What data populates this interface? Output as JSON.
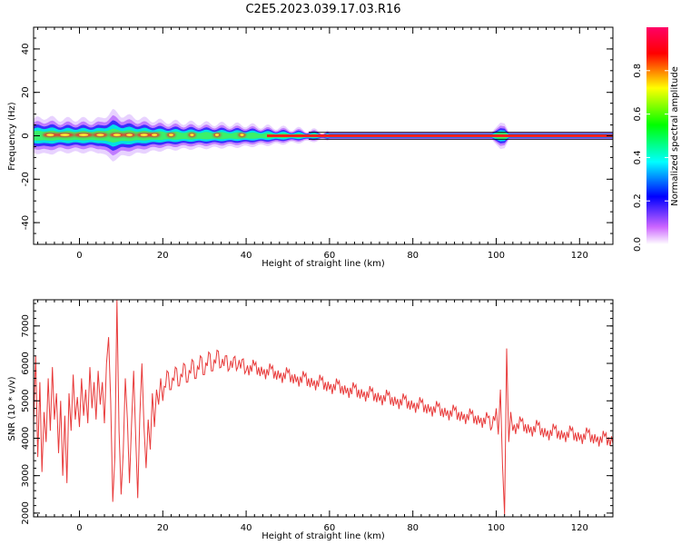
{
  "title": "C2E5.2023.039.17.03.R16",
  "chart_data": [
    {
      "type": "heatmap",
      "xlabel": "Height of straight line (km)",
      "ylabel": "Frequency (Hz)",
      "xlim": [
        -11,
        128
      ],
      "ylim": [
        -50,
        50
      ],
      "xticks": [
        0,
        20,
        40,
        60,
        80,
        100,
        120
      ],
      "yticks": [
        -40,
        -20,
        0,
        20,
        40
      ],
      "colorbar": {
        "label": "Normalized spectral amplitude",
        "range": [
          0,
          1
        ],
        "ticks": [
          "0.0",
          "0.2",
          "0.4",
          "0.6",
          "0.8"
        ],
        "colors": [
          "#ffffff",
          "#cc66ff",
          "#0000ff",
          "#00ffff",
          "#00ff00",
          "#ffff00",
          "#ff0000",
          "#ff0066"
        ]
      },
      "ridge": {
        "center_hz": 0,
        "halfwidth_hz": 1,
        "spread": [
          [
            -11,
            4
          ],
          [
            -8,
            4.5
          ],
          [
            -5,
            4
          ],
          [
            0,
            4
          ],
          [
            5,
            4
          ],
          [
            8,
            6
          ],
          [
            10,
            5
          ],
          [
            13,
            4.5
          ],
          [
            16,
            4
          ],
          [
            20,
            3.5
          ],
          [
            25,
            3.2
          ],
          [
            30,
            3
          ],
          [
            35,
            2.8
          ],
          [
            40,
            2.6
          ],
          [
            45,
            2.2
          ],
          [
            50,
            1.8
          ],
          [
            55,
            1.4
          ],
          [
            58,
            1.1
          ],
          [
            60,
            1.0
          ],
          [
            99,
            1.0
          ],
          [
            101,
            3.2
          ],
          [
            102,
            3.0
          ],
          [
            103,
            1.0
          ],
          [
            128,
            1.0
          ]
        ]
      }
    },
    {
      "type": "line",
      "xlabel": "Height of straight line (km)",
      "ylabel": "SNR (10 * v/v)",
      "xlim": [
        -11,
        128
      ],
      "ylim": [
        1900,
        7700
      ],
      "xticks": [
        0,
        20,
        40,
        60,
        80,
        100,
        120
      ],
      "yticks": [
        2000,
        3000,
        4000,
        5000,
        6000,
        7000
      ],
      "series": [
        {
          "color": "#e83a3a",
          "points": [
            [
              -11,
              4400
            ],
            [
              -10.5,
              6200
            ],
            [
              -10,
              3500
            ],
            [
              -9.5,
              5500
            ],
            [
              -9,
              3100
            ],
            [
              -8.5,
              4700
            ],
            [
              -8,
              3900
            ],
            [
              -7.5,
              5600
            ],
            [
              -7,
              4200
            ],
            [
              -6.5,
              5900
            ],
            [
              -6,
              4500
            ],
            [
              -5.5,
              5200
            ],
            [
              -5,
              3600
            ],
            [
              -4.5,
              5000
            ],
            [
              -4,
              3000
            ],
            [
              -3.5,
              4600
            ],
            [
              -3,
              2800
            ],
            [
              -2.5,
              5200
            ],
            [
              -2,
              4200
            ],
            [
              -1.5,
              5700
            ],
            [
              -1,
              4500
            ],
            [
              -0.5,
              5100
            ],
            [
              0,
              4300
            ],
            [
              0.5,
              5600
            ],
            [
              1,
              4600
            ],
            [
              1.5,
              5300
            ],
            [
              2,
              4400
            ],
            [
              2.5,
              5900
            ],
            [
              3,
              4800
            ],
            [
              3.5,
              5500
            ],
            [
              4,
              4500
            ],
            [
              4.5,
              5800
            ],
            [
              5,
              4900
            ],
            [
              5.5,
              5500
            ],
            [
              6,
              4400
            ],
            [
              6.5,
              6000
            ],
            [
              7,
              6700
            ],
            [
              7.5,
              5000
            ],
            [
              8,
              2300
            ],
            [
              8.5,
              3500
            ],
            [
              9,
              7700
            ],
            [
              9.5,
              4200
            ],
            [
              10,
              2500
            ],
            [
              10.5,
              3600
            ],
            [
              11,
              5600
            ],
            [
              11.5,
              4500
            ],
            [
              12,
              2800
            ],
            [
              12.5,
              4400
            ],
            [
              13,
              5800
            ],
            [
              13.5,
              4000
            ],
            [
              14,
              2400
            ],
            [
              14.5,
              4600
            ],
            [
              15,
              6000
            ],
            [
              15.5,
              4300
            ],
            [
              16,
              3200
            ],
            [
              16.5,
              4500
            ],
            [
              17,
              3700
            ],
            [
              17.5,
              5200
            ],
            [
              18,
              4300
            ],
            [
              18.5,
              5300
            ],
            [
              19,
              4900
            ],
            [
              19.5,
              5600
            ],
            [
              20,
              5000
            ],
            [
              21,
              5800
            ],
            [
              22,
              5300
            ],
            [
              23,
              5900
            ],
            [
              24,
              5400
            ],
            [
              25,
              6000
            ],
            [
              26,
              5500
            ],
            [
              27,
              6100
            ],
            [
              28,
              5600
            ],
            [
              29,
              6200
            ],
            [
              30,
              5700
            ],
            [
              31,
              6300
            ],
            [
              32,
              5800
            ],
            [
              33,
              6350
            ],
            [
              34,
              5900
            ],
            [
              35,
              6200
            ],
            [
              36,
              5850
            ],
            [
              37,
              6150
            ],
            [
              38,
              5900
            ],
            [
              39,
              6100
            ],
            [
              40,
              5800
            ],
            [
              42,
              5950
            ],
            [
              44,
              5700
            ],
            [
              46,
              5850
            ],
            [
              48,
              5600
            ],
            [
              50,
              5750
            ],
            [
              52,
              5500
            ],
            [
              54,
              5650
            ],
            [
              56,
              5400
            ],
            [
              58,
              5550
            ],
            [
              60,
              5300
            ],
            [
              62,
              5450
            ],
            [
              64,
              5200
            ],
            [
              66,
              5350
            ],
            [
              68,
              5100
            ],
            [
              70,
              5250
            ],
            [
              72,
              5000
            ],
            [
              74,
              5150
            ],
            [
              76,
              4900
            ],
            [
              78,
              5050
            ],
            [
              80,
              4800
            ],
            [
              82,
              4950
            ],
            [
              84,
              4700
            ],
            [
              86,
              4850
            ],
            [
              88,
              4600
            ],
            [
              90,
              4750
            ],
            [
              92,
              4500
            ],
            [
              94,
              4650
            ],
            [
              96,
              4400
            ],
            [
              98,
              4550
            ],
            [
              99,
              4300
            ],
            [
              100,
              4800
            ],
            [
              100.5,
              4100
            ],
            [
              101,
              5300
            ],
            [
              101.5,
              3300
            ],
            [
              102,
              1950
            ],
            [
              102.5,
              6400
            ],
            [
              103,
              3900
            ],
            [
              103.5,
              4700
            ],
            [
              104,
              4200
            ],
            [
              106,
              4450
            ],
            [
              108,
              4150
            ],
            [
              110,
              4350
            ],
            [
              112,
              4050
            ],
            [
              114,
              4250
            ],
            [
              116,
              4000
            ],
            [
              118,
              4200
            ],
            [
              120,
              3950
            ],
            [
              122,
              4150
            ],
            [
              124,
              3900
            ],
            [
              126,
              4050
            ],
            [
              128,
              3850
            ]
          ]
        }
      ]
    }
  ]
}
